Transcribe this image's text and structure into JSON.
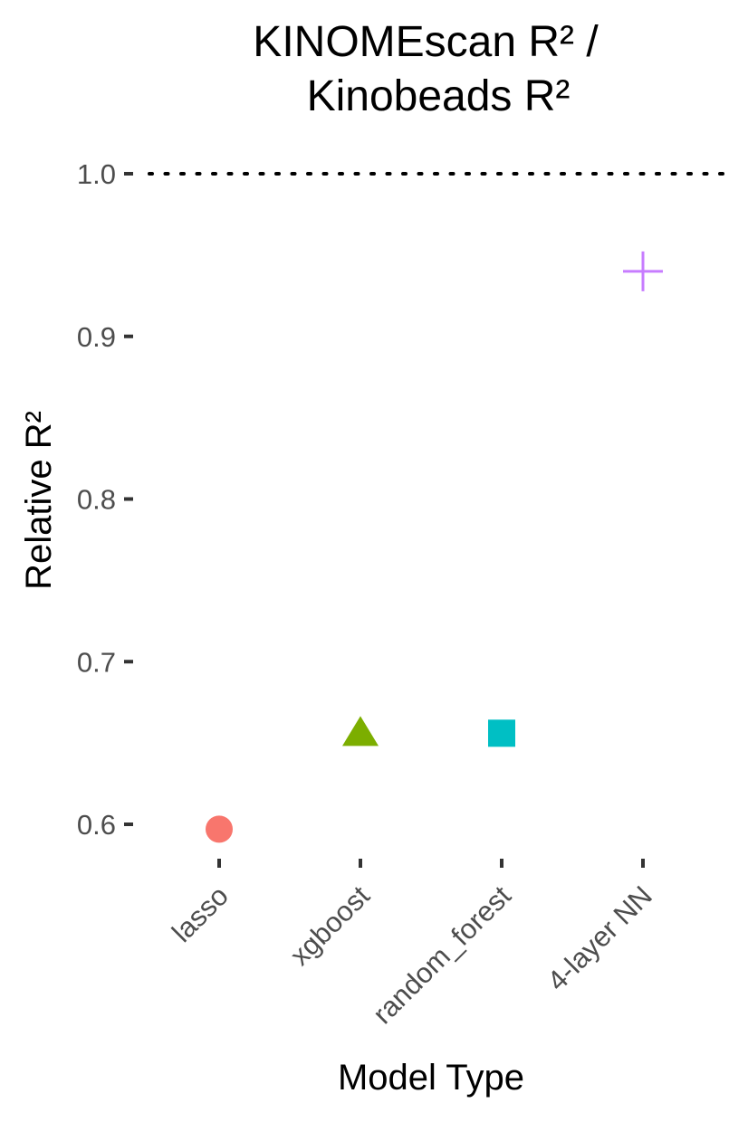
{
  "chart_data": {
    "type": "scatter",
    "title_lines": [
      "KINOMEscan R² /",
      "Kinobeads R²"
    ],
    "xlabel": "Model Type",
    "ylabel": "Relative R²",
    "categories": [
      "lasso",
      "xgboost",
      "random_forest",
      "4-layer NN"
    ],
    "y_ticks": [
      "0.6",
      "0.7",
      "0.8",
      "0.9",
      "1.0"
    ],
    "ylim": [
      0.575,
      1.0
    ],
    "reference_line": {
      "y": 1.0,
      "style": "dotted"
    },
    "grid": false,
    "points": [
      {
        "category": "lasso",
        "y": 0.597,
        "shape": "circle",
        "color": "#F8766D"
      },
      {
        "category": "xgboost",
        "y": 0.656,
        "shape": "triangle",
        "color": "#7CAE00"
      },
      {
        "category": "random_forest",
        "y": 0.656,
        "shape": "square",
        "color": "#00BFC4"
      },
      {
        "category": "4-layer NN",
        "y": 0.94,
        "shape": "plus",
        "color": "#C77CFF"
      }
    ]
  }
}
